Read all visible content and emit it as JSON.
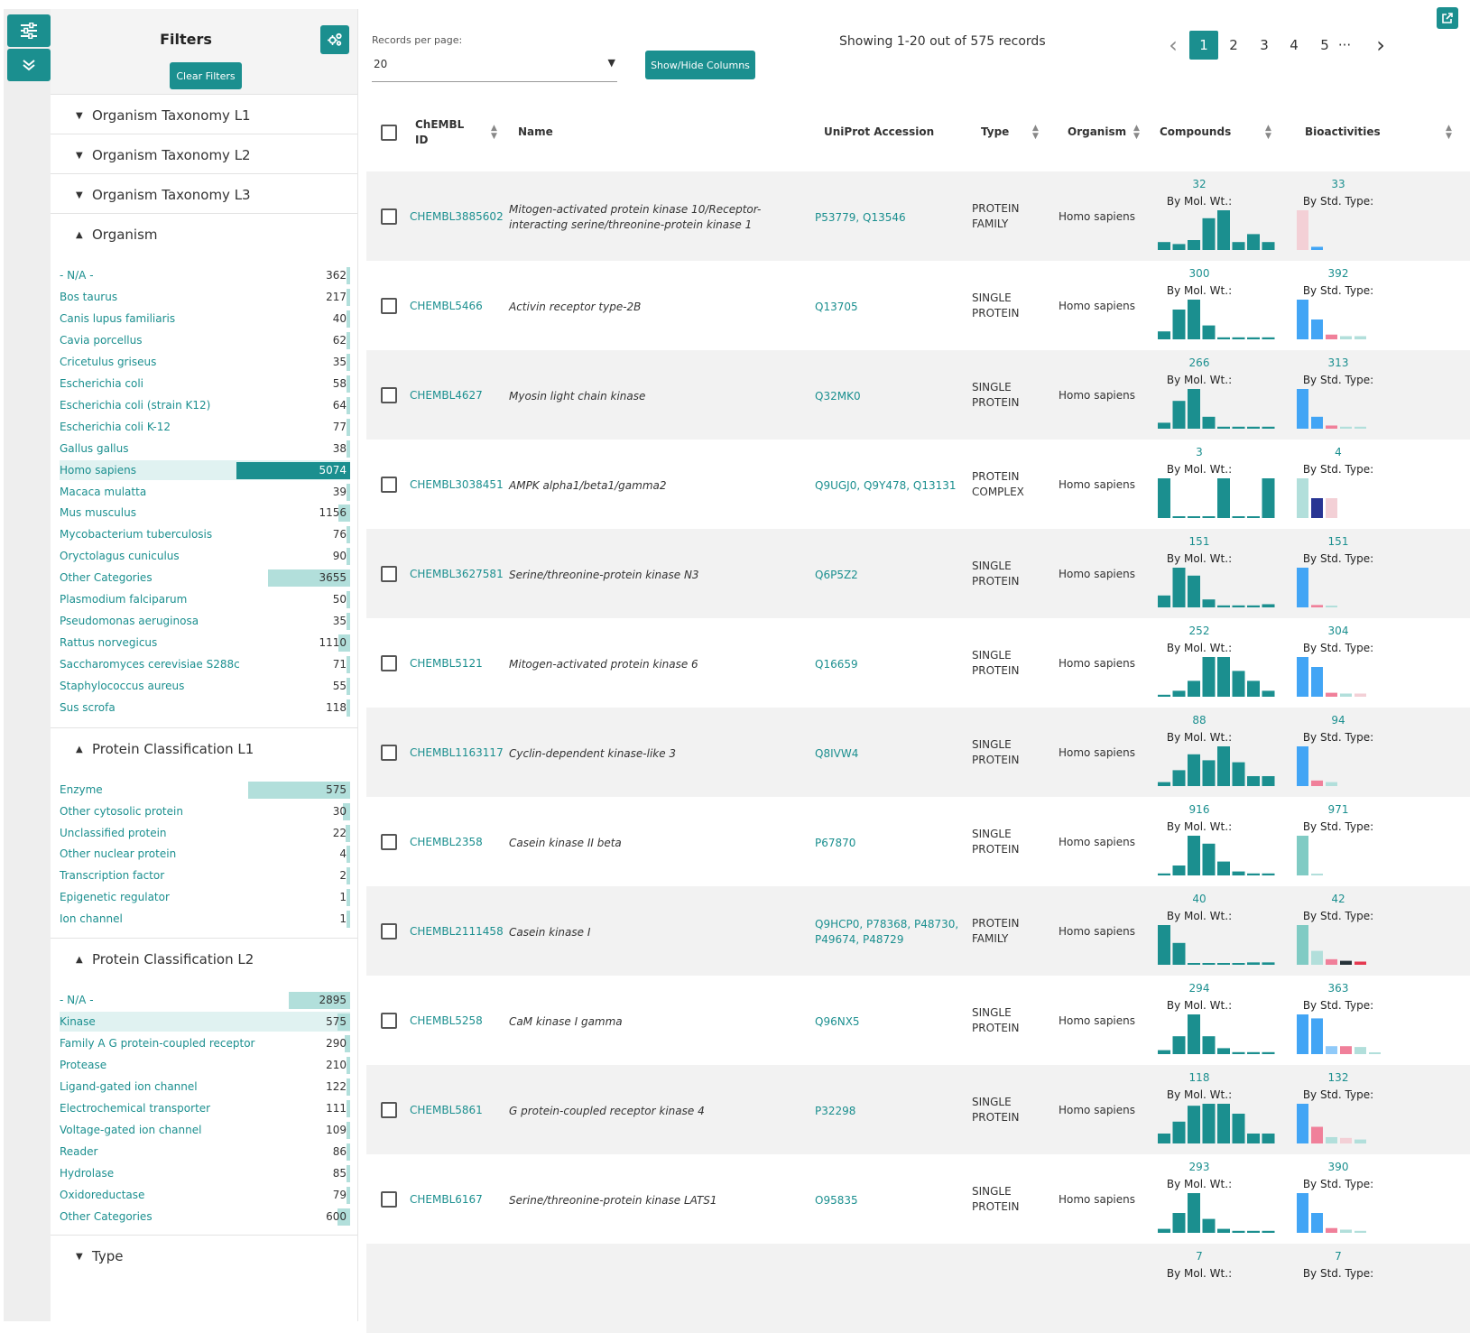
{
  "rail": {
    "filter_icon": "sliders-icon",
    "expand_icon": "double-chevron-down-icon"
  },
  "filters": {
    "title": "Filters",
    "clear_label": "Clear Filters",
    "gear_icon": "gears-icon",
    "sections": {
      "tax1": "Organism Taxonomy L1",
      "tax2": "Organism Taxonomy L2",
      "tax3": "Organism Taxonomy L3",
      "organism": "Organism",
      "pc1": "Protein Classification L1",
      "pc2": "Protein Classification L2",
      "type": "Type"
    },
    "organism_items": [
      {
        "label": "- N/A -",
        "count": "362",
        "fraction": 0.0
      },
      {
        "label": "Bos taurus",
        "count": "217",
        "fraction": 0.0
      },
      {
        "label": "Canis lupus familiaris",
        "count": "40",
        "fraction": 0.0
      },
      {
        "label": "Cavia porcellus",
        "count": "62",
        "fraction": 0.0
      },
      {
        "label": "Cricetulus griseus",
        "count": "35",
        "fraction": 0.0
      },
      {
        "label": "Escherichia coli",
        "count": "58",
        "fraction": 0.0
      },
      {
        "label": "Escherichia coli (strain K12)",
        "count": "64",
        "fraction": 0.0
      },
      {
        "label": "Escherichia coli K-12",
        "count": "77",
        "fraction": 0.0
      },
      {
        "label": "Gallus gallus",
        "count": "38",
        "fraction": 0.0
      },
      {
        "label": "Homo sapiens",
        "count": "5074",
        "fraction": 1.0,
        "selected": true
      },
      {
        "label": "Macaca mulatta",
        "count": "39",
        "fraction": 0.0
      },
      {
        "label": "Mus musculus",
        "count": "1156",
        "fraction": 0.1
      },
      {
        "label": "Mycobacterium tuberculosis",
        "count": "76",
        "fraction": 0.0
      },
      {
        "label": "Oryctolagus cuniculus",
        "count": "90",
        "fraction": 0.0
      },
      {
        "label": "Other Categories",
        "count": "3655",
        "fraction": 0.72
      },
      {
        "label": "Plasmodium falciparum",
        "count": "50",
        "fraction": 0.0
      },
      {
        "label": "Pseudomonas aeruginosa",
        "count": "35",
        "fraction": 0.0
      },
      {
        "label": "Rattus norvegicus",
        "count": "1110",
        "fraction": 0.1
      },
      {
        "label": "Saccharomyces cerevisiae S288c",
        "count": "71",
        "fraction": 0.0
      },
      {
        "label": "Staphylococcus aureus",
        "count": "55",
        "fraction": 0.0
      },
      {
        "label": "Sus scrofa",
        "count": "118",
        "fraction": 0.0
      }
    ],
    "pc1_items": [
      {
        "label": "Enzyme",
        "count": "575",
        "fraction": 0.9
      },
      {
        "label": "Other cytosolic protein",
        "count": "30",
        "fraction": 0.06
      },
      {
        "label": "Unclassified protein",
        "count": "22",
        "fraction": 0.04
      },
      {
        "label": "Other nuclear protein",
        "count": "4",
        "fraction": 0.0
      },
      {
        "label": "Transcription factor",
        "count": "2",
        "fraction": 0.0
      },
      {
        "label": "Epigenetic regulator",
        "count": "1",
        "fraction": 0.0
      },
      {
        "label": "Ion channel",
        "count": "1",
        "fraction": 0.0
      }
    ],
    "pc2_items": [
      {
        "label": "- N/A -",
        "count": "2895",
        "fraction": 0.54
      },
      {
        "label": "Kinase",
        "count": "575",
        "fraction": 0.11,
        "selected": true
      },
      {
        "label": "Family A G protein-coupled receptor",
        "count": "290",
        "fraction": 0.05
      },
      {
        "label": "Protease",
        "count": "210",
        "fraction": 0.0
      },
      {
        "label": "Ligand-gated ion channel",
        "count": "122",
        "fraction": 0.0
      },
      {
        "label": "Electrochemical transporter",
        "count": "111",
        "fraction": 0.0
      },
      {
        "label": "Voltage-gated ion channel",
        "count": "109",
        "fraction": 0.0
      },
      {
        "label": "Reader",
        "count": "86",
        "fraction": 0.0
      },
      {
        "label": "Hydrolase",
        "count": "85",
        "fraction": 0.0
      },
      {
        "label": "Oxidoreductase",
        "count": "79",
        "fraction": 0.0
      },
      {
        "label": "Other Categories",
        "count": "600",
        "fraction": 0.11
      }
    ]
  },
  "toolbar": {
    "rpp_label": "Records per page:",
    "rpp_value": "20",
    "show_hide_label": "Show/Hide Columns",
    "showing_text": "Showing 1-20 out of 575 records",
    "pages": [
      "1",
      "2",
      "3",
      "4",
      "5"
    ],
    "current_page": "1",
    "ellipsis": "···",
    "prev": "‹",
    "next": "›"
  },
  "table": {
    "columns": {
      "chembl_id": "ChEMBL ID",
      "name": "Name",
      "uniprot": "UniProt Accession",
      "type": "Type",
      "organism": "Organism",
      "compounds": "Compounds",
      "bioactivities": "Bioactivities"
    },
    "mol_wt_label": "By Mol. Wt.:",
    "std_type_label": "By Std. Type:",
    "rows": [
      {
        "id": "CHEMBL3885602",
        "name": "Mitogen-activated protein kinase 10/Receptor-interacting serine/threonine-protein kinase 1",
        "accession": "P53779, Q13546",
        "type": "PROTEIN FAMILY",
        "organism": "Homo sapiens",
        "compounds": "32",
        "bioactivities": "33",
        "mw": [
          0.2,
          0.15,
          0.25,
          0.8,
          1.0,
          0.2,
          0.4,
          0.2
        ],
        "std": [
          [
            1.0,
            "#f3d0d6"
          ],
          [
            0.08,
            "#42a5f5"
          ]
        ]
      },
      {
        "id": "CHEMBL5466",
        "name": "Activin receptor type-2B",
        "accession": "Q13705",
        "type": "SINGLE PROTEIN",
        "organism": "Homo sapiens",
        "compounds": "300",
        "bioactivities": "392",
        "mw": [
          0.2,
          0.75,
          1.0,
          0.35,
          0.05,
          0.05,
          0.05,
          0.05
        ],
        "std": [
          [
            1.0,
            "#42a5f5"
          ],
          [
            0.5,
            "#42a5f5"
          ],
          [
            0.12,
            "#f0809a"
          ],
          [
            0.08,
            "#b2dfdb"
          ],
          [
            0.08,
            "#b2dfdb"
          ]
        ]
      },
      {
        "id": "CHEMBL4627",
        "name": "Myosin light chain kinase",
        "accession": "Q32MK0",
        "type": "SINGLE PROTEIN",
        "organism": "Homo sapiens",
        "compounds": "266",
        "bioactivities": "313",
        "mw": [
          0.15,
          0.7,
          1.0,
          0.3,
          0.05,
          0.05,
          0.05,
          0.05
        ],
        "std": [
          [
            1.0,
            "#42a5f5"
          ],
          [
            0.3,
            "#42a5f5"
          ],
          [
            0.08,
            "#f0809a"
          ],
          [
            0.05,
            "#b2dfdb"
          ],
          [
            0.05,
            "#b2dfdb"
          ]
        ]
      },
      {
        "id": "CHEMBL3038451",
        "name": "AMPK alpha1/beta1/gamma2",
        "accession": "Q9UGJ0, Q9Y478, Q13131",
        "type": "PROTEIN COMPLEX",
        "organism": "Homo sapiens",
        "compounds": "3",
        "bioactivities": "4",
        "mw": [
          1.0,
          0.04,
          0.04,
          0.04,
          1.0,
          0.04,
          0.04,
          1.0
        ],
        "std": [
          [
            1.0,
            "#b2dfdb"
          ],
          [
            0.5,
            "#283593"
          ],
          [
            0.5,
            "#f3d0d6"
          ]
        ]
      },
      {
        "id": "CHEMBL3627581",
        "name": "Serine/threonine-protein kinase N3",
        "accession": "Q6P5Z2",
        "type": "SINGLE PROTEIN",
        "organism": "Homo sapiens",
        "compounds": "151",
        "bioactivities": "151",
        "mw": [
          0.3,
          1.0,
          0.8,
          0.2,
          0.05,
          0.05,
          0.05,
          0.08
        ],
        "std": [
          [
            1.0,
            "#42a5f5"
          ],
          [
            0.06,
            "#f0809a"
          ],
          [
            0.04,
            "#b2dfdb"
          ]
        ]
      },
      {
        "id": "CHEMBL5121",
        "name": "Mitogen-activated protein kinase 6",
        "accession": "Q16659",
        "type": "SINGLE PROTEIN",
        "organism": "Homo sapiens",
        "compounds": "252",
        "bioactivities": "304",
        "mw": [
          0.05,
          0.15,
          0.4,
          1.0,
          1.0,
          0.65,
          0.4,
          0.15
        ],
        "std": [
          [
            1.0,
            "#42a5f5"
          ],
          [
            0.75,
            "#42a5f5"
          ],
          [
            0.1,
            "#f0809a"
          ],
          [
            0.08,
            "#b2dfdb"
          ],
          [
            0.08,
            "#f3d0d6"
          ]
        ]
      },
      {
        "id": "CHEMBL1163117",
        "name": "Cyclin-dependent kinase-like 3",
        "accession": "Q8IVW4",
        "type": "SINGLE PROTEIN",
        "organism": "Homo sapiens",
        "compounds": "88",
        "bioactivities": "94",
        "mw": [
          0.1,
          0.4,
          0.8,
          0.65,
          1.0,
          0.6,
          0.25,
          0.25
        ],
        "std": [
          [
            1.0,
            "#42a5f5"
          ],
          [
            0.14,
            "#f0809a"
          ],
          [
            0.1,
            "#b2dfdb"
          ]
        ]
      },
      {
        "id": "CHEMBL2358",
        "name": "Casein kinase II beta",
        "accession": "P67870",
        "type": "SINGLE PROTEIN",
        "organism": "Homo sapiens",
        "compounds": "916",
        "bioactivities": "971",
        "mw": [
          0.05,
          0.25,
          1.0,
          0.8,
          0.35,
          0.1,
          0.05,
          0.05
        ],
        "std": [
          [
            1.0,
            "#80cbc4"
          ],
          [
            0.03,
            "#b2dfdb"
          ]
        ]
      },
      {
        "id": "CHEMBL2111458",
        "name": "Casein kinase I",
        "accession": "Q9HCP0, P78368, P48730, P49674, P48729",
        "type": "PROTEIN FAMILY",
        "organism": "Homo sapiens",
        "compounds": "40",
        "bioactivities": "42",
        "mw": [
          1.0,
          0.55,
          0.04,
          0.04,
          0.04,
          0.04,
          0.06,
          0.06
        ],
        "std": [
          [
            1.0,
            "#80cbc4"
          ],
          [
            0.35,
            "#b2dfdb"
          ],
          [
            0.14,
            "#f0809a"
          ],
          [
            0.1,
            "#263238"
          ],
          [
            0.08,
            "#e53950"
          ]
        ]
      },
      {
        "id": "CHEMBL5258",
        "name": "CaM kinase I gamma",
        "accession": "Q96NX5",
        "type": "SINGLE PROTEIN",
        "organism": "Homo sapiens",
        "compounds": "294",
        "bioactivities": "363",
        "mw": [
          0.1,
          0.45,
          1.0,
          0.45,
          0.15,
          0.05,
          0.05,
          0.05
        ],
        "std": [
          [
            1.0,
            "#42a5f5"
          ],
          [
            0.9,
            "#42a5f5"
          ],
          [
            0.2,
            "#90caf9"
          ],
          [
            0.2,
            "#f0809a"
          ],
          [
            0.18,
            "#b2dfdb"
          ],
          [
            0.04,
            "#b2dfdb"
          ]
        ]
      },
      {
        "id": "CHEMBL5861",
        "name": "G protein-coupled receptor kinase 4",
        "accession": "P32298",
        "type": "SINGLE PROTEIN",
        "organism": "Homo sapiens",
        "compounds": "118",
        "bioactivities": "132",
        "mw": [
          0.25,
          0.55,
          0.95,
          1.0,
          1.0,
          0.75,
          0.25,
          0.25
        ],
        "std": [
          [
            1.0,
            "#42a5f5"
          ],
          [
            0.42,
            "#f0809a"
          ],
          [
            0.16,
            "#b2dfdb"
          ],
          [
            0.14,
            "#f3d0d6"
          ],
          [
            0.1,
            "#b2dfdb"
          ]
        ]
      },
      {
        "id": "CHEMBL6167",
        "name": "Serine/threonine-protein kinase LATS1",
        "accession": "O95835",
        "type": "SINGLE PROTEIN",
        "organism": "Homo sapiens",
        "compounds": "293",
        "bioactivities": "390",
        "mw": [
          0.1,
          0.5,
          1.0,
          0.35,
          0.1,
          0.05,
          0.05,
          0.05
        ],
        "std": [
          [
            1.0,
            "#42a5f5"
          ],
          [
            0.5,
            "#42a5f5"
          ],
          [
            0.12,
            "#f0809a"
          ],
          [
            0.08,
            "#b2dfdb"
          ],
          [
            0.05,
            "#b2dfdb"
          ]
        ]
      },
      {
        "id": "",
        "name": "",
        "accession": "",
        "type": "",
        "organism": "",
        "compounds": "7",
        "bioactivities": "7",
        "mw": [],
        "std": []
      }
    ]
  }
}
